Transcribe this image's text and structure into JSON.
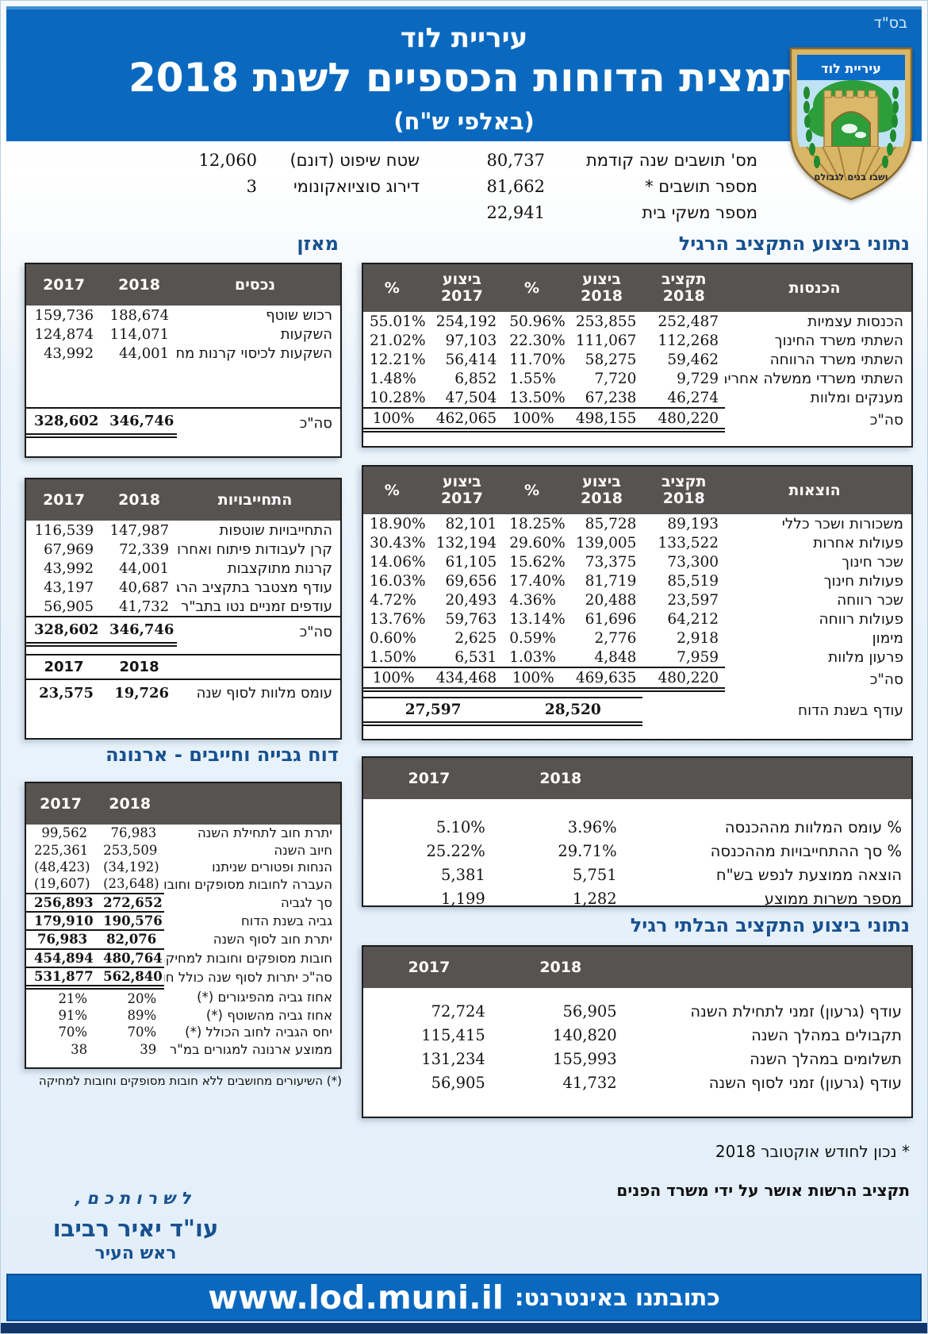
{
  "colors": {
    "header_blue": "#0a69bf",
    "band_gray": "#575350",
    "title_blue": "#17518f",
    "footer_navy": "#12356b"
  },
  "page": {
    "bsd": "בס\"ד"
  },
  "header": {
    "city": "עיריית לוד",
    "title": "תמצית הדוחות הכספיים לשנת 2018",
    "subtitle": "(באלפי ש\"ח)"
  },
  "logo": {
    "name": "עיריית לוד",
    "motto": "ושבו בנים לגבולם"
  },
  "stats": {
    "right": [
      {
        "label": "מס' תושבים שנה קודמת",
        "value": "80,737"
      },
      {
        "label": "מספר תושבים *",
        "value": "81,662"
      },
      {
        "label": "מספר משקי בית",
        "value": "22,941"
      }
    ],
    "left": [
      {
        "label": "שטח שיפוט (דונם)",
        "value": "12,060"
      },
      {
        "label": "דירוג סוציואקונומי",
        "value": "3"
      }
    ]
  },
  "balance": {
    "title": "מאזן",
    "assets": {
      "title": "נכסים",
      "years": [
        "2018",
        "2017"
      ],
      "rows": [
        {
          "label": "רכוש שוטף",
          "cells": [
            "188,674",
            "159,736"
          ]
        },
        {
          "label": "השקעות",
          "cells": [
            "114,071",
            "124,874"
          ]
        },
        {
          "label": "השקעות לכיסוי קרנות מתוקצבות ואחרות",
          "cells": [
            "44,001",
            "43,992"
          ],
          "cls": "sm"
        }
      ],
      "total": {
        "label": "סה\"כ",
        "cells": [
          "346,746",
          "328,602"
        ]
      }
    },
    "liabilities": {
      "title": "התחייבויות",
      "years": [
        "2018",
        "2017"
      ],
      "rows": [
        {
          "label": "התחייבויות שוטפות",
          "cells": [
            "147,987",
            "116,539"
          ]
        },
        {
          "label": "קרן לעבודות פיתוח ואחרות",
          "cells": [
            "72,339",
            "67,969"
          ]
        },
        {
          "label": "קרנות מתוקצבות",
          "cells": [
            "44,001",
            "43,992"
          ]
        },
        {
          "label": "עודף מצטבר בתקציב הרגיל",
          "cells": [
            "40,687",
            "43,197"
          ]
        },
        {
          "label": "עודפים זמניים נטו בתב\"ר",
          "cells": [
            "41,732",
            "56,905"
          ]
        }
      ],
      "total": {
        "label": "סה\"כ",
        "cells": [
          "346,746",
          "328,602"
        ]
      },
      "sub_years": [
        "2018",
        "2017"
      ],
      "loans": {
        "label": "עומס מלוות לסוף שנה",
        "cells": [
          "19,726",
          "23,575"
        ]
      }
    }
  },
  "collection": {
    "title": "דוח גבייה וחייבים - ארנונה",
    "years": [
      "2018",
      "2017"
    ],
    "rows": [
      {
        "label": "יתרת חוב לתחילת השנה",
        "cells": [
          "76,983",
          "99,562"
        ]
      },
      {
        "label": "חיוב השנה",
        "cells": [
          "253,509",
          "225,361"
        ]
      },
      {
        "label": "הנחות ופטורים שניתנו",
        "cells": [
          "(34,192)",
          "(48,423)"
        ]
      },
      {
        "label": "העברה לחובות מסופקים וחובות למחיקה",
        "cells": [
          "(23,648)",
          "(19,607)"
        ],
        "cls": "u sm"
      },
      {
        "label": "סך לגביה",
        "cells": [
          "272,652",
          "256,893"
        ],
        "cls": "b u"
      },
      {
        "label": "גביה בשנת הדוח",
        "cells": [
          "190,576",
          "179,910"
        ],
        "cls": "b u"
      },
      {
        "label": "יתרת חוב לסוף השנה",
        "cells": [
          "82,076",
          "76,983"
        ],
        "cls": "b u"
      },
      {
        "label": "חובות מסופקים וחובות למחיקה",
        "cells": [
          "480,764",
          "454,894"
        ],
        "cls": "b u"
      },
      {
        "label": "סה\"כ יתרות לסוף שנה כולל חובות",
        "cells": [
          "562,840",
          "531,877"
        ],
        "cls": "b uu sm2"
      },
      {
        "label": "אחוז גביה מהפיגורים (*)",
        "cells": [
          "20%",
          "21%"
        ]
      },
      {
        "label": "אחוז גביה מהשוטף (*)",
        "cells": [
          "89%",
          "91%"
        ]
      },
      {
        "label": "יחס הגביה לחוב הכולל (*)",
        "cells": [
          "70%",
          "70%"
        ]
      },
      {
        "label": "ממוצע ארנונה למגורים במ\"ר",
        "cells": [
          "39",
          "38"
        ]
      }
    ],
    "footnote": "(*) השיעורים מחושבים ללא חובות מסופקים וחובות למחיקה"
  },
  "regular": {
    "title": "נתוני ביצוע התקציב הרגיל",
    "col_headers": [
      "תקציב\n2018",
      "ביצוע\n2018",
      "%",
      "ביצוע\n2017",
      "%"
    ],
    "income": {
      "label": "הכנסות",
      "rows": [
        {
          "label": "הכנסות עצמיות",
          "cells": [
            "252,487",
            "253,855",
            "50.96%",
            "254,192",
            "55.01%"
          ]
        },
        {
          "label": "השתתי משרד החינוך",
          "cells": [
            "112,268",
            "111,067",
            "22.30%",
            "97,103",
            "21.02%"
          ]
        },
        {
          "label": "השתתי משרד הרווחה",
          "cells": [
            "59,462",
            "58,275",
            "11.70%",
            "56,414",
            "12.21%"
          ]
        },
        {
          "label": "השתתי משרדי ממשלה אחרים",
          "cells": [
            "9,729",
            "7,720",
            "1.55%",
            "6,852",
            "1.48%"
          ]
        },
        {
          "label": "מענקים ומלוות",
          "cells": [
            "46,274",
            "67,238",
            "13.50%",
            "47,504",
            "10.28%"
          ]
        }
      ],
      "total": {
        "label": "סה\"כ",
        "cells": [
          "480,220",
          "498,155",
          "100%",
          "462,065",
          "100%"
        ]
      }
    },
    "expenses": {
      "label": "הוצאות",
      "rows": [
        {
          "label": "משכורות ושכר כללי",
          "cells": [
            "89,193",
            "85,728",
            "18.25%",
            "82,101",
            "18.90%"
          ]
        },
        {
          "label": "פעולות אחרות",
          "cells": [
            "133,522",
            "139,005",
            "29.60%",
            "132,194",
            "30.43%"
          ]
        },
        {
          "label": "שכר חינוך",
          "cells": [
            "73,300",
            "73,375",
            "15.62%",
            "61,105",
            "14.06%"
          ]
        },
        {
          "label": "פעולות חינוך",
          "cells": [
            "85,519",
            "81,719",
            "17.40%",
            "69,656",
            "16.03%"
          ]
        },
        {
          "label": "שכר רווחה",
          "cells": [
            "23,597",
            "20,488",
            "4.36%",
            "20,493",
            "4.72%"
          ]
        },
        {
          "label": "פעולות רווחה",
          "cells": [
            "64,212",
            "61,696",
            "13.14%",
            "59,763",
            "13.76%"
          ]
        },
        {
          "label": "מימון",
          "cells": [
            "2,918",
            "2,776",
            "0.59%",
            "2,625",
            "0.60%"
          ]
        },
        {
          "label": "פרעון מלוות",
          "cells": [
            "7,959",
            "4,848",
            "1.03%",
            "6,531",
            "1.50%"
          ]
        }
      ],
      "total": {
        "label": "סה\"כ",
        "cells": [
          "480,220",
          "469,635",
          "100%",
          "434,468",
          "100%"
        ]
      },
      "surplus": {
        "label": "עודף בשנת הדוח",
        "v2018": "28,520",
        "v2017": "27,597"
      }
    },
    "ratios": {
      "years": [
        "2018",
        "2017"
      ],
      "rows": [
        {
          "label": "% עומס המלוות מההכנסה",
          "cells": [
            "3.96%",
            "5.10%"
          ]
        },
        {
          "label": "% סך ההתחייבויות מההכנסה",
          "cells": [
            "29.71%",
            "25.22%"
          ]
        },
        {
          "label": "הוצאה ממוצעת לנפש בש\"ח",
          "cells": [
            "5,751",
            "5,381"
          ]
        },
        {
          "label": "מספר משרות ממוצע",
          "cells": [
            "1,282",
            "1,199"
          ]
        }
      ]
    }
  },
  "irregular": {
    "title": "נתוני ביצוע התקציב הבלתי רגיל",
    "years": [
      "2018",
      "2017"
    ],
    "rows": [
      {
        "label": "עודף (גרעון) זמני לתחילת השנה",
        "cells": [
          "56,905",
          "72,724"
        ]
      },
      {
        "label": "תקבולים במהלך השנה",
        "cells": [
          "140,820",
          "115,415"
        ]
      },
      {
        "label": "תשלומים במהלך השנה",
        "cells": [
          "155,993",
          "131,234"
        ]
      },
      {
        "label": "עודף (גרעון) זמני לסוף השנה",
        "cells": [
          "41,732",
          "56,905"
        ]
      }
    ]
  },
  "notes": {
    "asterisk": "* נכון לחודש אוקטובר 2018",
    "approved": "תקציב הרשות אושר על ידי משרד הפנים"
  },
  "signature": {
    "greeting": "לשרותכם,",
    "name": "עו\"ד יאיר רביבו",
    "role": "ראש העיר"
  },
  "footer": {
    "label": "כתובתנו באינטרנט:",
    "url": "www.lod.muni.il"
  }
}
